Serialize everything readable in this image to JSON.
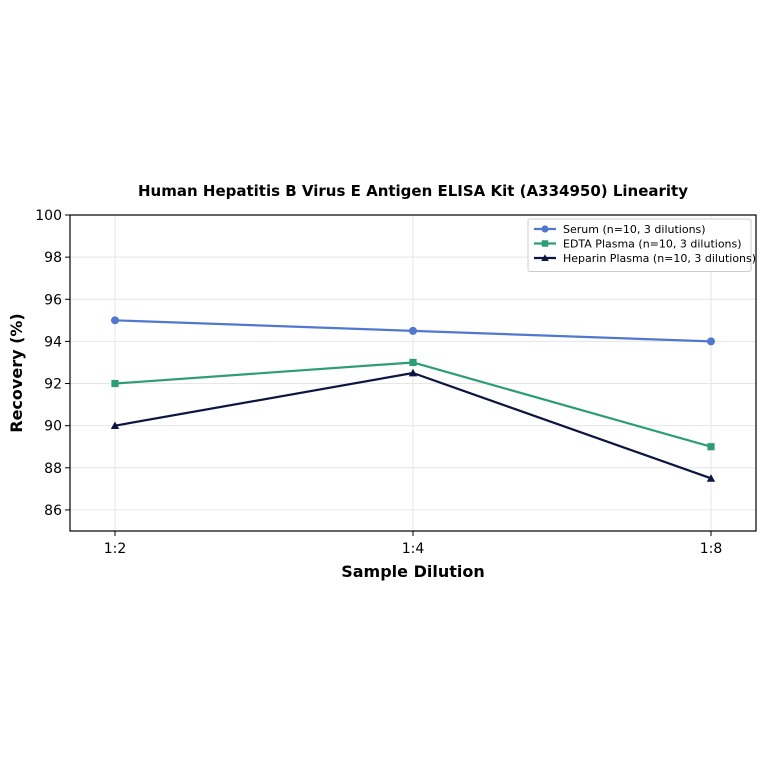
{
  "chart_data": {
    "type": "line",
    "title": "Human Hepatitis B Virus E Antigen ELISA Kit (A334950) Linearity",
    "xlabel": "Sample Dilution",
    "ylabel": "Recovery (%)",
    "categories": [
      "1:2",
      "1:4",
      "1:8"
    ],
    "ylim": [
      85,
      100
    ],
    "yticks": [
      86,
      88,
      90,
      92,
      94,
      96,
      98,
      100
    ],
    "grid": true,
    "legend_position": "top-right",
    "series": [
      {
        "name": "Serum (n=10, 3 dilutions)",
        "values": [
          95,
          94.5,
          94
        ],
        "color": "#5277cf",
        "marker": "circle"
      },
      {
        "name": "EDTA Plasma (n=10, 3 dilutions)",
        "values": [
          92,
          93,
          89
        ],
        "color": "#2e9c78",
        "marker": "square"
      },
      {
        "name": "Heparin Plasma (n=10, 3 dilutions)",
        "values": [
          90,
          92.5,
          87.5
        ],
        "color": "#0d1640",
        "marker": "triangle"
      }
    ]
  }
}
